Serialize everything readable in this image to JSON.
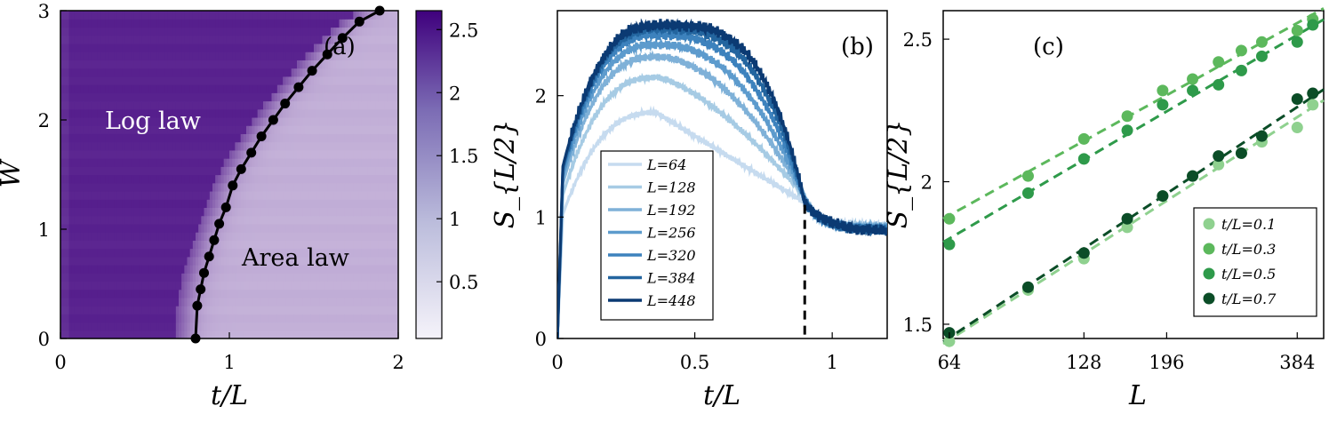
{
  "chart_data": [
    {
      "type": "heatmap",
      "panel_label": "(a)",
      "xlabel": "t/L",
      "ylabel": "W",
      "xlim": [
        0,
        2
      ],
      "ylim": [
        0,
        3
      ],
      "xticks": [
        "0",
        "1",
        "2"
      ],
      "yticks": [
        "0",
        "1",
        "2",
        "3"
      ],
      "colorbar": {
        "ticks": [
          "0.5",
          "1",
          "1.5",
          "2",
          "2.5"
        ],
        "range": [
          0.05,
          2.65
        ],
        "colors": [
          "#f5f3fa",
          "#3f007d"
        ]
      },
      "annotations": [
        {
          "text": "Log law"
        },
        {
          "text": "Area law"
        }
      ],
      "critical_curve": {
        "x": [
          0.8,
          0.81,
          0.83,
          0.85,
          0.88,
          0.91,
          0.94,
          0.98,
          1.02,
          1.07,
          1.13,
          1.19,
          1.26,
          1.33,
          1.41,
          1.49,
          1.58,
          1.67,
          1.77,
          1.89
        ],
        "y": [
          0.0,
          0.3,
          0.45,
          0.6,
          0.75,
          0.9,
          1.05,
          1.2,
          1.4,
          1.55,
          1.7,
          1.85,
          2.0,
          2.15,
          2.3,
          2.45,
          2.6,
          2.75,
          2.9,
          3.0
        ]
      }
    },
    {
      "type": "line",
      "panel_label": "(b)",
      "xlabel": "t/L",
      "ylabel": "S_{L/2}",
      "xlim": [
        0,
        1.2
      ],
      "ylim": [
        0,
        2.7
      ],
      "xticks": [
        "0",
        "0.5",
        "1"
      ],
      "yticks": [
        "0",
        "1",
        "2"
      ],
      "vline_x": 0.9,
      "legend_position": "center",
      "series": [
        {
          "name": "L=64",
          "color": "#c6dbef",
          "peak": 1.86
        },
        {
          "name": "L=128",
          "color": "#a6cbe4",
          "peak": 2.15
        },
        {
          "name": "L=192",
          "color": "#7fb1d8",
          "peak": 2.32
        },
        {
          "name": "L=256",
          "color": "#5d9bcd",
          "peak": 2.42
        },
        {
          "name": "L=320",
          "color": "#3d82bd",
          "peak": 2.5
        },
        {
          "name": "L=384",
          "color": "#23659f",
          "peak": 2.55
        },
        {
          "name": "L=448",
          "color": "#0b3a73",
          "peak": 2.58
        }
      ]
    },
    {
      "type": "scatter",
      "panel_label": "(c)",
      "xlabel": "L",
      "ylabel": "S_{L/2}",
      "xscale": "log",
      "xlim": [
        62,
        440
      ],
      "ylim": [
        1.45,
        2.6
      ],
      "xticks": [
        "64",
        "128",
        "196",
        "384"
      ],
      "yticks": [
        "1.5",
        "2",
        "2.5"
      ],
      "legend_position": "lower right",
      "x": [
        64,
        96,
        128,
        160,
        192,
        224,
        256,
        288,
        320,
        384,
        416
      ],
      "series": [
        {
          "name": "t/L=0.1",
          "color": "#8fd18f",
          "values": [
            1.44,
            1.62,
            1.73,
            1.84,
            1.95,
            2.02,
            2.06,
            2.1,
            2.14,
            2.19,
            2.27
          ]
        },
        {
          "name": "t/L=0.3",
          "color": "#5cb85c",
          "values": [
            1.87,
            2.02,
            2.15,
            2.23,
            2.32,
            2.36,
            2.42,
            2.46,
            2.49,
            2.53,
            2.57
          ]
        },
        {
          "name": "t/L=0.5",
          "color": "#2e9a4a",
          "values": [
            1.78,
            1.96,
            2.08,
            2.18,
            2.27,
            2.32,
            2.34,
            2.39,
            2.44,
            2.49,
            2.55
          ]
        },
        {
          "name": "t/L=0.7",
          "color": "#0b4d27",
          "values": [
            1.47,
            1.63,
            1.75,
            1.87,
            1.95,
            2.02,
            2.09,
            2.1,
            2.16,
            2.29,
            2.31
          ]
        }
      ]
    }
  ]
}
